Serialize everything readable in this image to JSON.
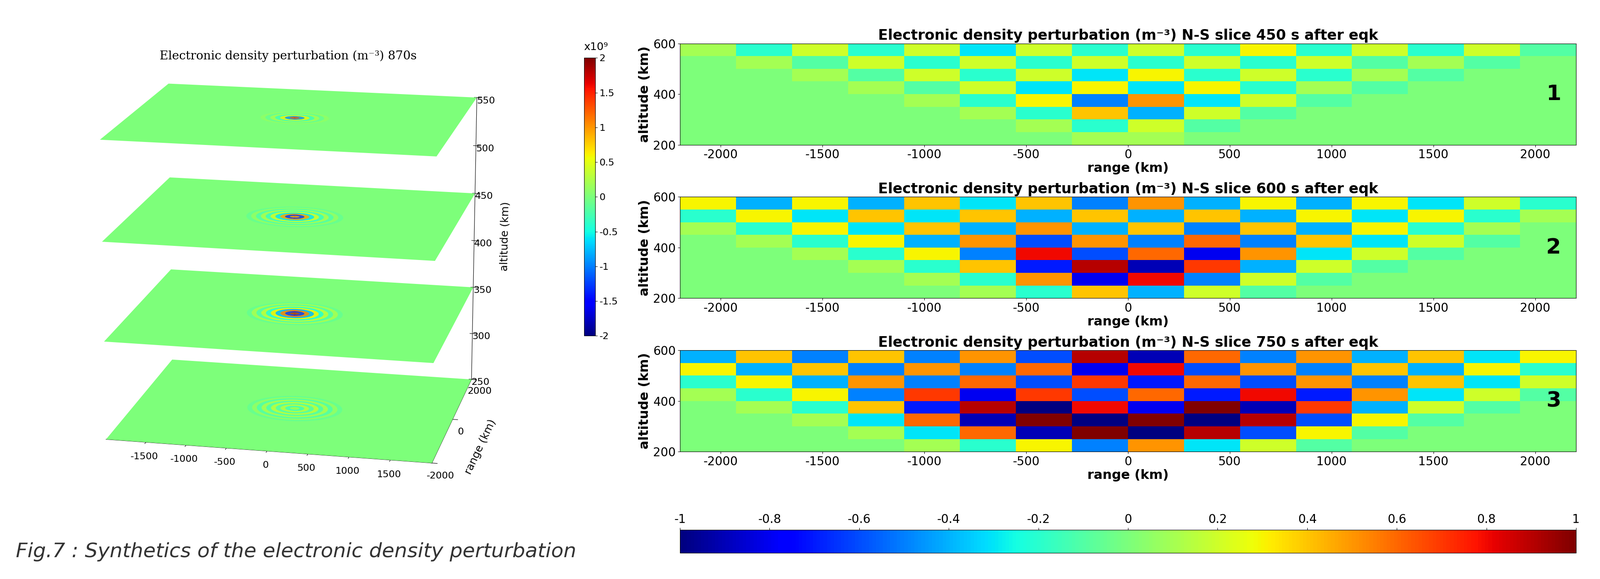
{
  "chart_data": [
    {
      "type": "slices3d",
      "title": "Electronic density perturbation (m⁻³) 870s",
      "zlabel": "altitude (km)",
      "ylabel": "range (km)",
      "xlim": [
        -2000,
        2000
      ],
      "ylim": [
        -2000,
        2000
      ],
      "zlim": [
        250,
        550
      ],
      "xticks": [
        -1500,
        -1000,
        -500,
        0,
        500,
        1000,
        1500
      ],
      "yticks": [
        -2000,
        0,
        2000
      ],
      "zticks": [
        250,
        300,
        350,
        400,
        450,
        500,
        550
      ],
      "ring_radii": [
        0,
        60,
        120,
        180,
        240,
        300,
        360,
        420,
        480,
        540,
        600
      ],
      "planes": [
        {
          "altitude": 250,
          "values": [
            0.2,
            -0.3,
            0.3,
            -0.2,
            0.3,
            -0.2,
            0.2,
            -0.2,
            0.1,
            -0.1
          ]
        },
        {
          "altitude": 350,
          "values": [
            1.8,
            -1.5,
            1.2,
            -0.8,
            0.6,
            -0.4,
            0.3,
            -0.2,
            0.2,
            -0.1
          ]
        },
        {
          "altitude": 450,
          "values": [
            1.2,
            -1.5,
            1.0,
            -0.6,
            0.4,
            -0.3,
            0.2,
            -0.2,
            0.1,
            -0.1
          ]
        },
        {
          "altitude": 550,
          "values": [
            1.5,
            -1.0,
            0.6,
            -0.3,
            0.2,
            -0.1,
            0.1,
            0,
            0,
            0
          ]
        }
      ],
      "colorbar": {
        "lim": [
          -2,
          2
        ],
        "ticks": [
          -2,
          -1.5,
          -1,
          -0.5,
          0,
          0.5,
          1,
          1.5,
          2
        ],
        "label": "x10⁹"
      }
    },
    {
      "type": "heatmap",
      "panel_label": "1",
      "title": "Electronic density perturbation (m⁻³) N-S slice 450 s after eqk",
      "xlabel": "range (km)",
      "ylabel": "altitude (km)",
      "xlim": [
        -2200,
        2200
      ],
      "ylim": [
        200,
        600
      ],
      "xticks": [
        -2000,
        -1500,
        -1000,
        -500,
        0,
        500,
        1000,
        1500,
        2000
      ],
      "yticks": [
        200,
        400,
        600
      ],
      "range_edges": [
        -2200,
        -1925,
        -1650,
        -1375,
        -1100,
        -825,
        -550,
        -275,
        0,
        275,
        550,
        825,
        1100,
        1375,
        1650,
        1925,
        2200
      ],
      "altitude_edges": [
        200,
        250,
        300,
        350,
        400,
        450,
        500,
        550,
        600
      ],
      "cells": [
        [
          0,
          0,
          0,
          0,
          0,
          0,
          0,
          0.1,
          0.1,
          0,
          0,
          0,
          0,
          0,
          0,
          0
        ],
        [
          0,
          0,
          0,
          0,
          0,
          0,
          0.1,
          -0.2,
          0.2,
          -0.1,
          0,
          0,
          0,
          0,
          0,
          0
        ],
        [
          0,
          0,
          0,
          0,
          0,
          0.1,
          -0.2,
          0.4,
          -0.4,
          0.2,
          -0.1,
          0,
          0,
          0,
          0,
          0
        ],
        [
          0,
          0,
          0,
          0,
          0.1,
          -0.2,
          0.3,
          -0.5,
          0.5,
          -0.3,
          0.2,
          -0.1,
          0,
          0,
          0,
          0
        ],
        [
          0,
          0,
          0,
          0.1,
          -0.1,
          0.2,
          -0.3,
          0.3,
          -0.3,
          0.3,
          -0.2,
          0.1,
          -0.1,
          0,
          0,
          0
        ],
        [
          0,
          0,
          0.1,
          -0.1,
          0.2,
          -0.2,
          0.2,
          -0.3,
          0.3,
          -0.2,
          0.2,
          -0.2,
          0.1,
          -0.1,
          0,
          0
        ],
        [
          0,
          0.1,
          -0.1,
          0.2,
          -0.2,
          0.2,
          -0.2,
          0.2,
          -0.2,
          0.2,
          -0.2,
          0.2,
          -0.1,
          0.1,
          -0.1,
          0
        ],
        [
          0.1,
          -0.2,
          0.2,
          -0.2,
          0.2,
          -0.3,
          0.2,
          -0.2,
          0.2,
          -0.2,
          0.3,
          -0.2,
          0.2,
          -0.2,
          0.2,
          -0.1
        ]
      ]
    },
    {
      "type": "heatmap",
      "panel_label": "2",
      "title": "Electronic density perturbation (m⁻³) N-S slice 600 s after eqk",
      "xlabel": "range (km)",
      "ylabel": "altitude (km)",
      "xlim": [
        -2200,
        2200
      ],
      "ylim": [
        200,
        600
      ],
      "xticks": [
        -2000,
        -1500,
        -1000,
        -500,
        0,
        500,
        1000,
        1500,
        2000
      ],
      "yticks": [
        200,
        400,
        600
      ],
      "range_edges": [
        -2200,
        -1925,
        -1650,
        -1375,
        -1100,
        -825,
        -550,
        -275,
        0,
        275,
        550,
        825,
        1100,
        1375,
        1650,
        1925,
        2200
      ],
      "altitude_edges": [
        200,
        250,
        300,
        350,
        400,
        450,
        500,
        550,
        600
      ],
      "cells": [
        [
          0,
          0,
          0,
          0,
          0,
          0.1,
          -0.2,
          0.4,
          -0.4,
          0.2,
          -0.1,
          0,
          0,
          0,
          0,
          0
        ],
        [
          0,
          0,
          0,
          0,
          0.1,
          -0.2,
          0.5,
          -0.8,
          0.8,
          -0.5,
          0.2,
          -0.1,
          0,
          0,
          0,
          0
        ],
        [
          0,
          0,
          0,
          0.1,
          -0.2,
          0.4,
          -0.7,
          0.9,
          -0.9,
          0.7,
          -0.4,
          0.2,
          -0.1,
          0,
          0,
          0
        ],
        [
          0,
          0,
          0.1,
          -0.2,
          0.3,
          -0.5,
          0.8,
          -0.6,
          0.6,
          -0.8,
          0.5,
          -0.3,
          0.2,
          -0.1,
          0,
          0
        ],
        [
          0,
          0.1,
          -0.2,
          0.3,
          -0.4,
          0.5,
          -0.6,
          0.5,
          -0.5,
          0.6,
          -0.5,
          0.4,
          -0.3,
          0.2,
          -0.1,
          0
        ],
        [
          0.1,
          -0.2,
          0.3,
          -0.3,
          0.4,
          -0.4,
          0.5,
          -0.4,
          0.4,
          -0.5,
          0.4,
          -0.4,
          0.3,
          -0.2,
          0.1,
          0
        ],
        [
          -0.2,
          0.3,
          -0.3,
          0.4,
          -0.3,
          0.4,
          -0.4,
          0.4,
          -0.4,
          0.4,
          -0.4,
          0.3,
          -0.3,
          0.3,
          -0.2,
          0.1
        ],
        [
          0.3,
          -0.4,
          0.3,
          -0.4,
          0.4,
          -0.3,
          0.4,
          -0.5,
          0.5,
          -0.4,
          0.3,
          -0.4,
          0.3,
          -0.3,
          0.2,
          -0.2
        ]
      ]
    },
    {
      "type": "heatmap",
      "panel_label": "3",
      "title": "Electronic density perturbation (m⁻³) N-S slice 750 s after eqk",
      "xlabel": "range (km)",
      "ylabel": "altitude (km)",
      "xlim": [
        -2200,
        2200
      ],
      "ylim": [
        200,
        600
      ],
      "xticks": [
        -2000,
        -1500,
        -1000,
        -500,
        0,
        500,
        1000,
        1500,
        2000
      ],
      "yticks": [
        200,
        400,
        600
      ],
      "range_edges": [
        -2200,
        -1925,
        -1650,
        -1375,
        -1100,
        -825,
        -550,
        -275,
        0,
        275,
        550,
        825,
        1100,
        1375,
        1650,
        1925,
        2200
      ],
      "altitude_edges": [
        200,
        250,
        300,
        350,
        400,
        450,
        500,
        550,
        600
      ],
      "cells": [
        [
          0,
          0,
          0,
          0,
          0.1,
          -0.2,
          0.3,
          -0.5,
          0.5,
          -0.3,
          0.2,
          -0.1,
          0,
          0,
          0,
          0
        ],
        [
          0,
          0,
          0,
          0.1,
          -0.3,
          0.6,
          -0.9,
          1.0,
          -1.0,
          0.9,
          -0.6,
          0.3,
          -0.1,
          0,
          0,
          0
        ],
        [
          0,
          0,
          0.1,
          -0.3,
          0.6,
          -0.9,
          1.0,
          -1.0,
          1.0,
          -1.0,
          0.9,
          -0.6,
          0.3,
          -0.1,
          0,
          0
        ],
        [
          0,
          0.1,
          -0.2,
          0.4,
          -0.7,
          0.9,
          -1.0,
          0.8,
          -0.8,
          1.0,
          -0.9,
          0.7,
          -0.4,
          0.2,
          -0.1,
          0
        ],
        [
          0.1,
          -0.2,
          0.3,
          -0.5,
          0.7,
          -0.8,
          0.7,
          -0.6,
          0.6,
          -0.7,
          0.8,
          -0.7,
          0.5,
          -0.3,
          0.2,
          -0.1
        ],
        [
          -0.2,
          0.3,
          -0.4,
          0.5,
          -0.5,
          0.6,
          -0.6,
          0.7,
          -0.7,
          0.6,
          -0.6,
          0.5,
          -0.5,
          0.4,
          -0.3,
          0.2
        ],
        [
          0.3,
          -0.4,
          0.4,
          -0.5,
          0.5,
          -0.5,
          0.6,
          -0.8,
          0.8,
          -0.6,
          0.5,
          -0.5,
          0.4,
          -0.4,
          0.3,
          -0.2
        ],
        [
          -0.4,
          0.4,
          -0.5,
          0.4,
          -0.5,
          0.5,
          -0.6,
          0.9,
          -0.9,
          0.6,
          -0.5,
          0.5,
          -0.4,
          0.4,
          -0.3,
          0.3
        ]
      ]
    }
  ],
  "heatmap_colorbar": {
    "lim": [
      -1,
      1
    ],
    "ticks": [
      -1,
      -0.8,
      -0.6,
      -0.4,
      -0.2,
      0,
      0.2,
      0.4,
      0.6,
      0.8,
      1
    ]
  },
  "caption": "Fig.7 : Synthetics of the electronic density perturbation"
}
